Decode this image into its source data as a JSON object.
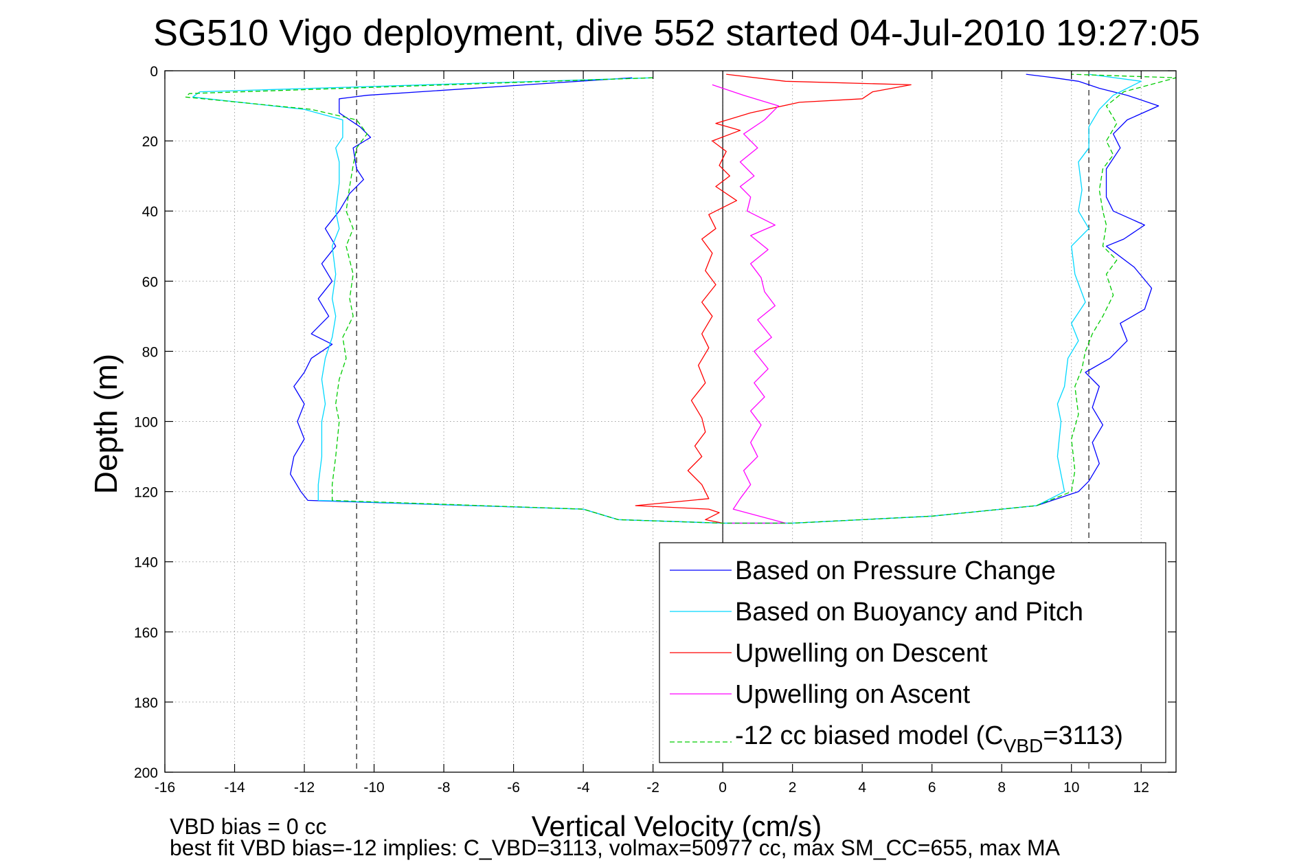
{
  "chart_data": {
    "type": "line",
    "title": "SG510 Vigo deployment, dive 552 started 04-Jul-2010 19:27:05",
    "xlabel": "Vertical Velocity (cm/s)",
    "ylabel": "Depth (m)",
    "xlim": [
      -16,
      13
    ],
    "ylim": [
      200,
      0
    ],
    "x_ticks": [
      -16,
      -14,
      -12,
      -10,
      -8,
      -6,
      -4,
      -2,
      0,
      2,
      4,
      6,
      8,
      10,
      12
    ],
    "y_ticks": [
      0,
      20,
      40,
      60,
      80,
      100,
      120,
      140,
      160,
      180,
      200
    ],
    "grid": true,
    "legend_position": "bottom-right",
    "reference_lines": {
      "vertical_solid_at": 0,
      "vertical_dashed_at": [
        -10.5,
        10.5
      ]
    },
    "series": [
      {
        "name": "Based on Pressure Change",
        "color": "#0000ff",
        "style": "solid",
        "points": [
          [
            -2.6,
            2
          ],
          [
            -10.2,
            7
          ],
          [
            -11.0,
            8
          ],
          [
            -11.0,
            12
          ],
          [
            -10.4,
            16
          ],
          [
            -10.1,
            19
          ],
          [
            -10.6,
            22
          ],
          [
            -10.5,
            28
          ],
          [
            -10.3,
            31
          ],
          [
            -10.7,
            35
          ],
          [
            -11.0,
            40
          ],
          [
            -11.4,
            45
          ],
          [
            -11.1,
            50
          ],
          [
            -11.5,
            55
          ],
          [
            -11.2,
            60
          ],
          [
            -11.6,
            65
          ],
          [
            -11.3,
            70
          ],
          [
            -11.8,
            75
          ],
          [
            -11.2,
            78
          ],
          [
            -11.8,
            82
          ],
          [
            -12.0,
            86
          ],
          [
            -12.3,
            90
          ],
          [
            -12.0,
            95
          ],
          [
            -12.2,
            100
          ],
          [
            -12.0,
            105
          ],
          [
            -12.3,
            110
          ],
          [
            -12.4,
            115
          ],
          [
            -12.1,
            120
          ],
          [
            -11.9,
            122.5
          ],
          [
            -4.0,
            125
          ],
          [
            -3.0,
            128
          ],
          [
            0.0,
            129
          ],
          [
            2.0,
            129
          ],
          [
            6.0,
            127
          ],
          [
            9.0,
            124
          ],
          [
            10.2,
            120
          ],
          [
            10.5,
            117
          ],
          [
            10.8,
            112
          ],
          [
            10.6,
            106
          ],
          [
            10.9,
            101
          ],
          [
            10.6,
            96
          ],
          [
            10.8,
            90
          ],
          [
            10.4,
            86
          ],
          [
            11.1,
            82
          ],
          [
            11.6,
            77
          ],
          [
            11.4,
            72
          ],
          [
            12.1,
            68
          ],
          [
            12.3,
            62
          ],
          [
            11.8,
            56
          ],
          [
            11.0,
            50
          ],
          [
            11.5,
            48
          ],
          [
            12.1,
            44
          ],
          [
            11.2,
            40
          ],
          [
            11.0,
            36
          ],
          [
            11.0,
            28
          ],
          [
            11.4,
            22
          ],
          [
            11.2,
            18
          ],
          [
            11.6,
            14
          ],
          [
            12.5,
            10
          ],
          [
            11.6,
            7
          ],
          [
            10.8,
            5
          ],
          [
            10.2,
            3
          ],
          [
            9.5,
            2
          ],
          [
            8.7,
            1
          ]
        ]
      },
      {
        "name": "Based on Buoyancy and Pitch",
        "color": "#00d8ff",
        "style": "solid",
        "points": [
          [
            -2.0,
            2
          ],
          [
            -15.0,
            6
          ],
          [
            -15.2,
            7.5
          ],
          [
            -12.0,
            11
          ],
          [
            -10.9,
            14
          ],
          [
            -10.9,
            19
          ],
          [
            -11.1,
            22
          ],
          [
            -11.0,
            26
          ],
          [
            -11.0,
            32
          ],
          [
            -11.1,
            40
          ],
          [
            -11.0,
            45
          ],
          [
            -11.2,
            50
          ],
          [
            -11.1,
            58
          ],
          [
            -11.2,
            65
          ],
          [
            -11.1,
            70
          ],
          [
            -11.2,
            76
          ],
          [
            -11.4,
            82
          ],
          [
            -11.5,
            88
          ],
          [
            -11.4,
            95
          ],
          [
            -11.5,
            100
          ],
          [
            -11.5,
            110
          ],
          [
            -11.6,
            118
          ],
          [
            -11.6,
            122.5
          ],
          [
            -4.0,
            125
          ],
          [
            -3.0,
            128
          ],
          [
            0.0,
            129
          ],
          [
            2.0,
            129
          ],
          [
            6.0,
            127
          ],
          [
            9.0,
            124
          ],
          [
            9.8,
            120
          ],
          [
            9.7,
            115
          ],
          [
            9.6,
            110
          ],
          [
            9.7,
            100
          ],
          [
            9.6,
            95
          ],
          [
            9.8,
            90
          ],
          [
            9.9,
            82
          ],
          [
            10.2,
            77
          ],
          [
            10.0,
            72
          ],
          [
            10.4,
            66
          ],
          [
            10.1,
            58
          ],
          [
            10.0,
            50
          ],
          [
            10.5,
            45
          ],
          [
            10.2,
            40
          ],
          [
            10.3,
            34
          ],
          [
            10.2,
            26
          ],
          [
            10.5,
            22
          ],
          [
            10.5,
            16
          ],
          [
            10.8,
            11
          ],
          [
            11.2,
            7
          ],
          [
            12.0,
            3
          ],
          [
            10.5,
            1
          ]
        ]
      },
      {
        "name": "Upwelling on Descent",
        "color": "#ff0000",
        "style": "solid",
        "points": [
          [
            0.1,
            1
          ],
          [
            1.8,
            3
          ],
          [
            5.4,
            4
          ],
          [
            4.3,
            6
          ],
          [
            4.0,
            8
          ],
          [
            2.2,
            9
          ],
          [
            0.8,
            12
          ],
          [
            -0.2,
            15
          ],
          [
            0.5,
            17
          ],
          [
            -0.3,
            20
          ],
          [
            0.1,
            23
          ],
          [
            -0.1,
            27
          ],
          [
            0.2,
            30
          ],
          [
            -0.2,
            33
          ],
          [
            0.4,
            37
          ],
          [
            -0.4,
            41
          ],
          [
            -0.2,
            45
          ],
          [
            -0.6,
            48
          ],
          [
            -0.3,
            52
          ],
          [
            -0.5,
            57
          ],
          [
            -0.2,
            61
          ],
          [
            -0.6,
            66
          ],
          [
            -0.3,
            70
          ],
          [
            -0.6,
            75
          ],
          [
            -0.4,
            79
          ],
          [
            -0.7,
            84
          ],
          [
            -0.5,
            89
          ],
          [
            -0.9,
            94
          ],
          [
            -0.6,
            99
          ],
          [
            -0.5,
            103
          ],
          [
            -0.8,
            107
          ],
          [
            -0.6,
            110
          ],
          [
            -1.0,
            114
          ],
          [
            -0.6,
            118
          ],
          [
            -0.4,
            122
          ],
          [
            -2.5,
            124
          ],
          [
            -0.4,
            125
          ],
          [
            -0.1,
            126
          ],
          [
            -0.5,
            128
          ],
          [
            0.0,
            129
          ]
        ]
      },
      {
        "name": "Upwelling on Ascent",
        "color": "#ff00ff",
        "style": "solid",
        "points": [
          [
            0.2,
            129
          ],
          [
            1.8,
            129
          ],
          [
            0.3,
            125
          ],
          [
            0.5,
            122
          ],
          [
            0.8,
            118
          ],
          [
            0.6,
            114
          ],
          [
            1.0,
            110
          ],
          [
            0.8,
            106
          ],
          [
            1.1,
            101
          ],
          [
            0.8,
            97
          ],
          [
            1.2,
            93
          ],
          [
            0.9,
            89
          ],
          [
            1.3,
            85
          ],
          [
            0.9,
            80
          ],
          [
            1.4,
            76
          ],
          [
            1.0,
            71
          ],
          [
            1.5,
            67
          ],
          [
            1.2,
            63
          ],
          [
            1.1,
            59
          ],
          [
            0.8,
            55
          ],
          [
            1.3,
            51
          ],
          [
            0.8,
            47
          ],
          [
            1.5,
            44
          ],
          [
            0.7,
            40
          ],
          [
            0.8,
            36
          ],
          [
            0.5,
            33
          ],
          [
            0.9,
            30
          ],
          [
            0.5,
            26
          ],
          [
            1.0,
            22
          ],
          [
            0.6,
            18
          ],
          [
            1.2,
            14
          ],
          [
            1.6,
            10
          ],
          [
            0.6,
            7
          ],
          [
            -0.3,
            4
          ]
        ]
      },
      {
        "name": "-12 cc biased model (C_VBD=3113)",
        "legend_label": "-12 cc biased model (C",
        "legend_subscript": "VBD",
        "legend_suffix": "=3113)",
        "color": "#00cc00",
        "style": "dashed",
        "points": [
          [
            -2.0,
            2
          ],
          [
            -15.3,
            6.5
          ],
          [
            -15.4,
            7.5
          ],
          [
            -11.8,
            11
          ],
          [
            -10.5,
            14
          ],
          [
            -10.2,
            18
          ],
          [
            -10.5,
            22
          ],
          [
            -10.6,
            27
          ],
          [
            -10.7,
            33
          ],
          [
            -10.8,
            40
          ],
          [
            -10.6,
            45
          ],
          [
            -10.8,
            50
          ],
          [
            -10.6,
            58
          ],
          [
            -10.7,
            65
          ],
          [
            -10.6,
            70
          ],
          [
            -10.9,
            76
          ],
          [
            -10.8,
            82
          ],
          [
            -11.0,
            88
          ],
          [
            -11.1,
            95
          ],
          [
            -11.0,
            100
          ],
          [
            -11.1,
            110
          ],
          [
            -11.2,
            118
          ],
          [
            -11.2,
            122.5
          ],
          [
            -4.0,
            125
          ],
          [
            -3.0,
            128
          ],
          [
            0.0,
            129
          ],
          [
            2.0,
            129
          ],
          [
            6.0,
            127
          ],
          [
            9.0,
            124
          ],
          [
            10.0,
            120
          ],
          [
            10.1,
            114
          ],
          [
            10.0,
            105
          ],
          [
            10.2,
            98
          ],
          [
            10.1,
            90
          ],
          [
            10.3,
            85
          ],
          [
            10.4,
            80
          ],
          [
            10.6,
            75
          ],
          [
            10.9,
            70
          ],
          [
            11.2,
            64
          ],
          [
            11.0,
            58
          ],
          [
            11.3,
            54
          ],
          [
            10.9,
            50
          ],
          [
            11.0,
            44
          ],
          [
            10.9,
            40
          ],
          [
            10.8,
            34
          ],
          [
            10.9,
            28
          ],
          [
            11.2,
            24
          ],
          [
            11.0,
            20
          ],
          [
            11.3,
            15
          ],
          [
            11.0,
            10
          ],
          [
            11.5,
            6
          ],
          [
            13.0,
            2
          ],
          [
            10.0,
            1
          ]
        ]
      }
    ],
    "footer": {
      "line1": "VBD bias = 0 cc",
      "line2": "best fit VBD bias=-12 implies: C_VBD=3113, volmax=50977 cc, max SM_CC=655, max MA"
    }
  }
}
